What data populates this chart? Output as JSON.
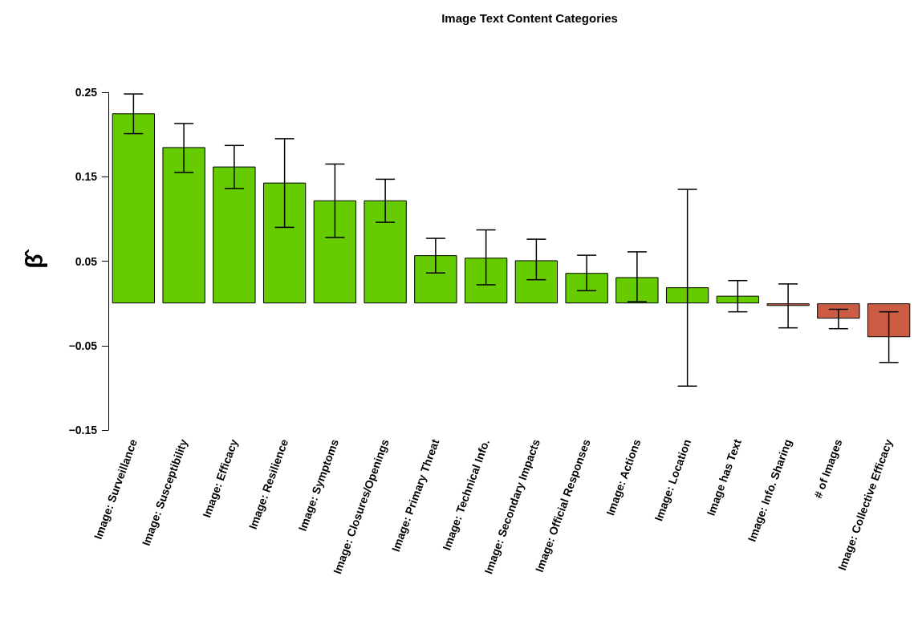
{
  "chart_data": {
    "type": "bar",
    "title": "Image Text Content Categories",
    "ylabel": "β̂",
    "categories": [
      "Image: Surveillance",
      "Image: Susceptibility",
      "Image: Efficacy",
      "Image: Resilience",
      "Image: Symptoms",
      "Image: Closures/Openings",
      "Image: Primary Threat",
      "Image: Technical Info.",
      "Image: Secondary Impacts",
      "Image: Official Responses",
      "Image: Actions",
      "Image: Location",
      "Image has Text",
      "Image: Info. Sharing",
      "# of Images",
      "Image: Collective Efficacy"
    ],
    "values": [
      0.225,
      0.185,
      0.162,
      0.143,
      0.122,
      0.122,
      0.057,
      0.054,
      0.051,
      0.036,
      0.031,
      0.019,
      0.009,
      -0.003,
      -0.018,
      -0.04
    ],
    "errors": [
      [
        0.201,
        0.248
      ],
      [
        0.155,
        0.213
      ],
      [
        0.136,
        0.187
      ],
      [
        0.09,
        0.195
      ],
      [
        0.078,
        0.165
      ],
      [
        0.096,
        0.147
      ],
      [
        0.036,
        0.077
      ],
      [
        0.022,
        0.087
      ],
      [
        0.028,
        0.076
      ],
      [
        0.015,
        0.057
      ],
      [
        0.002,
        0.061
      ],
      [
        -0.098,
        0.135
      ],
      [
        -0.01,
        0.027
      ],
      [
        -0.029,
        0.023
      ],
      [
        -0.03,
        -0.007
      ],
      [
        -0.07,
        -0.01
      ]
    ],
    "colors": [
      "#66cc00",
      "#66cc00",
      "#66cc00",
      "#66cc00",
      "#66cc00",
      "#66cc00",
      "#66cc00",
      "#66cc00",
      "#66cc00",
      "#66cc00",
      "#66cc00",
      "#66cc00",
      "#66cc00",
      "#cd5c45",
      "#cd5c45",
      "#cd5c45"
    ],
    "ylim": [
      -0.15,
      0.25
    ],
    "yticks": [
      {
        "value": -0.15,
        "label": "−0.15"
      },
      {
        "value": -0.05,
        "label": "−0.05"
      },
      0.05,
      0.15,
      0.25
    ],
    "grid": false
  }
}
